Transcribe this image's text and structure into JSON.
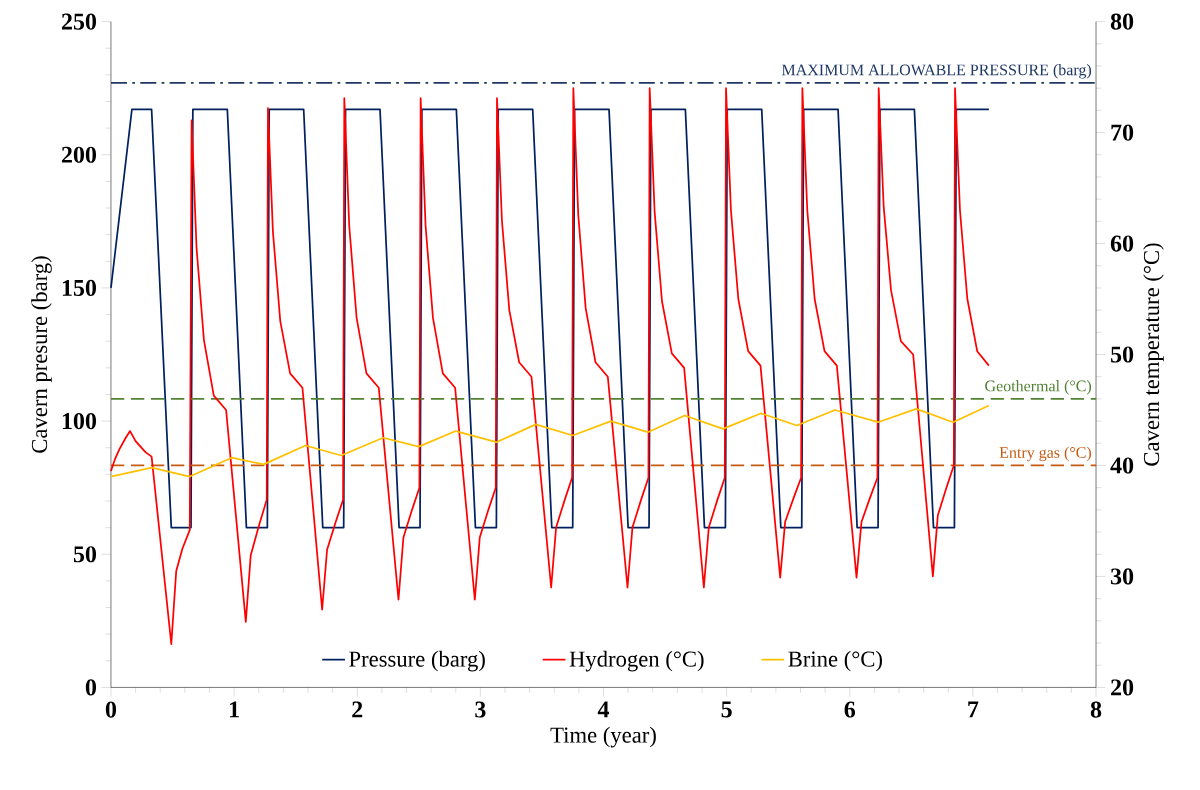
{
  "chart_data": {
    "type": "line",
    "xlabel": "Time (year)",
    "ylabel": "Cavern presure (barg)",
    "y2label": "Cavern temperature (°C)",
    "xlim": [
      0,
      8
    ],
    "xticks": [
      0,
      1,
      2,
      3,
      4,
      5,
      6,
      7,
      8
    ],
    "ylim": [
      0,
      250
    ],
    "yticks": [
      0,
      50,
      100,
      150,
      200,
      250
    ],
    "y2lim": [
      20,
      80
    ],
    "y2ticks": [
      20,
      30,
      40,
      50,
      60,
      70,
      80
    ],
    "legend": "bottom",
    "series": [
      {
        "name": "Pressure (barg)",
        "color": "#002060",
        "x": [
          0,
          0.17,
          0.33,
          0.49,
          0.65,
          0.665,
          0.945,
          1.1,
          1.27,
          1.285,
          1.565,
          1.72,
          1.89,
          1.905,
          2.185,
          2.34,
          2.51,
          2.525,
          2.805,
          2.96,
          3.13,
          3.145,
          3.425,
          3.58,
          3.75,
          3.765,
          4.045,
          4.2,
          4.37,
          4.385,
          4.665,
          4.82,
          4.99,
          5.005,
          5.285,
          5.44,
          5.61,
          5.625,
          5.905,
          6.06,
          6.23,
          6.245,
          6.525,
          6.68,
          6.85,
          6.865,
          7.13
        ],
        "values": [
          150,
          217,
          217,
          60,
          60,
          217,
          217,
          60,
          60,
          217,
          217,
          60,
          60,
          217,
          217,
          60,
          60,
          217,
          217,
          60,
          60,
          217,
          217,
          60,
          60,
          217,
          217,
          60,
          60,
          217,
          217,
          60,
          60,
          217,
          217,
          60,
          60,
          217,
          217,
          60,
          60,
          217,
          217,
          60,
          60,
          217,
          217
        ]
      },
      {
        "name": "Hydrogen (°C)",
        "color": "#ff0000",
        "axis": "y2",
        "x": [
          0,
          0.03,
          0.07,
          0.12,
          0.155,
          0.2,
          0.28,
          0.33,
          0.49,
          0.53,
          0.58,
          0.64,
          0.655,
          0.695,
          0.755,
          0.835,
          0.935,
          1.095,
          1.135,
          1.205,
          1.265,
          1.275,
          1.315,
          1.375,
          1.455,
          1.555,
          1.715,
          1.755,
          1.825,
          1.885,
          1.895,
          1.935,
          1.995,
          2.075,
          2.175,
          2.335,
          2.375,
          2.445,
          2.505,
          2.515,
          2.555,
          2.615,
          2.695,
          2.795,
          2.955,
          2.995,
          3.065,
          3.125,
          3.135,
          3.175,
          3.235,
          3.315,
          3.415,
          3.575,
          3.615,
          3.685,
          3.745,
          3.755,
          3.795,
          3.855,
          3.935,
          4.035,
          4.195,
          4.235,
          4.305,
          4.365,
          4.375,
          4.415,
          4.475,
          4.555,
          4.655,
          4.815,
          4.855,
          4.925,
          4.985,
          4.995,
          5.035,
          5.095,
          5.175,
          5.275,
          5.435,
          5.475,
          5.545,
          5.605,
          5.615,
          5.655,
          5.715,
          5.795,
          5.895,
          6.055,
          6.095,
          6.165,
          6.225,
          6.235,
          6.275,
          6.335,
          6.415,
          6.515,
          6.675,
          6.715,
          6.785,
          6.845,
          6.855,
          6.895,
          6.955,
          7.035,
          7.13
        ],
        "values": [
          39.5,
          40.5,
          41.5,
          42.5,
          43.1,
          42.2,
          41.2,
          40.8,
          23.9,
          30.5,
          32.5,
          34.2,
          71.1,
          59.6,
          51.3,
          46.3,
          45,
          25.9,
          31.9,
          34.7,
          36.9,
          72.2,
          61.1,
          53.0,
          48.3,
          47,
          27,
          32.4,
          34.9,
          36.9,
          73.1,
          61.6,
          53.3,
          48.3,
          47,
          27.9,
          33.5,
          36.0,
          38,
          73.1,
          61.6,
          53.3,
          48.3,
          47,
          27.9,
          33.5,
          36.0,
          38,
          73.1,
          62.1,
          54.0,
          49.3,
          48,
          29,
          34.4,
          36.9,
          38.9,
          74,
          62.6,
          54.2,
          49.3,
          48,
          29,
          34.4,
          36.9,
          38.9,
          74,
          62.9,
          54.8,
          50.1,
          48.8,
          29,
          34.4,
          36.9,
          38.9,
          74,
          63,
          55,
          50.3,
          49,
          29.9,
          34.9,
          37.1,
          38.9,
          74,
          63,
          55,
          50.3,
          49,
          29.9,
          34.9,
          37.1,
          38.9,
          74,
          63.4,
          55.8,
          51.2,
          50,
          30,
          35.5,
          38,
          40,
          74,
          63,
          55,
          50.3,
          49
        ]
      },
      {
        "name": "Brine (°C)",
        "color": "#ffc000",
        "axis": "y2",
        "x": [
          0,
          0.33,
          0.64,
          0.98,
          1.24,
          1.58,
          1.87,
          2.21,
          2.5,
          2.8,
          3.13,
          3.45,
          3.75,
          4.06,
          4.36,
          4.66,
          4.97,
          5.28,
          5.57,
          5.88,
          6.23,
          6.54,
          6.84,
          7.13
        ],
        "values": [
          39.0,
          39.8,
          39.0,
          40.7,
          40.1,
          41.8,
          40.9,
          42.5,
          41.7,
          43.1,
          42.1,
          43.7,
          42.7,
          44.0,
          43.0,
          44.5,
          43.3,
          44.7,
          43.6,
          45.0,
          43.9,
          45.1,
          43.9,
          45.4
        ]
      }
    ],
    "ref_lines": [
      {
        "axis": "y",
        "value": 227,
        "label": "MAXIMUM ALLOWABLE PRESSURE (barg)",
        "color": "#1f3864",
        "line_style": "dashdot"
      },
      {
        "axis": "y2",
        "value": 46,
        "label": "Geothermal (°C)",
        "color": "#548235",
        "line_style": "dashed"
      },
      {
        "axis": "y2",
        "value": 40,
        "label": "Entry gas (°C)",
        "color": "#c55a11",
        "line_style": "dashed"
      }
    ]
  }
}
